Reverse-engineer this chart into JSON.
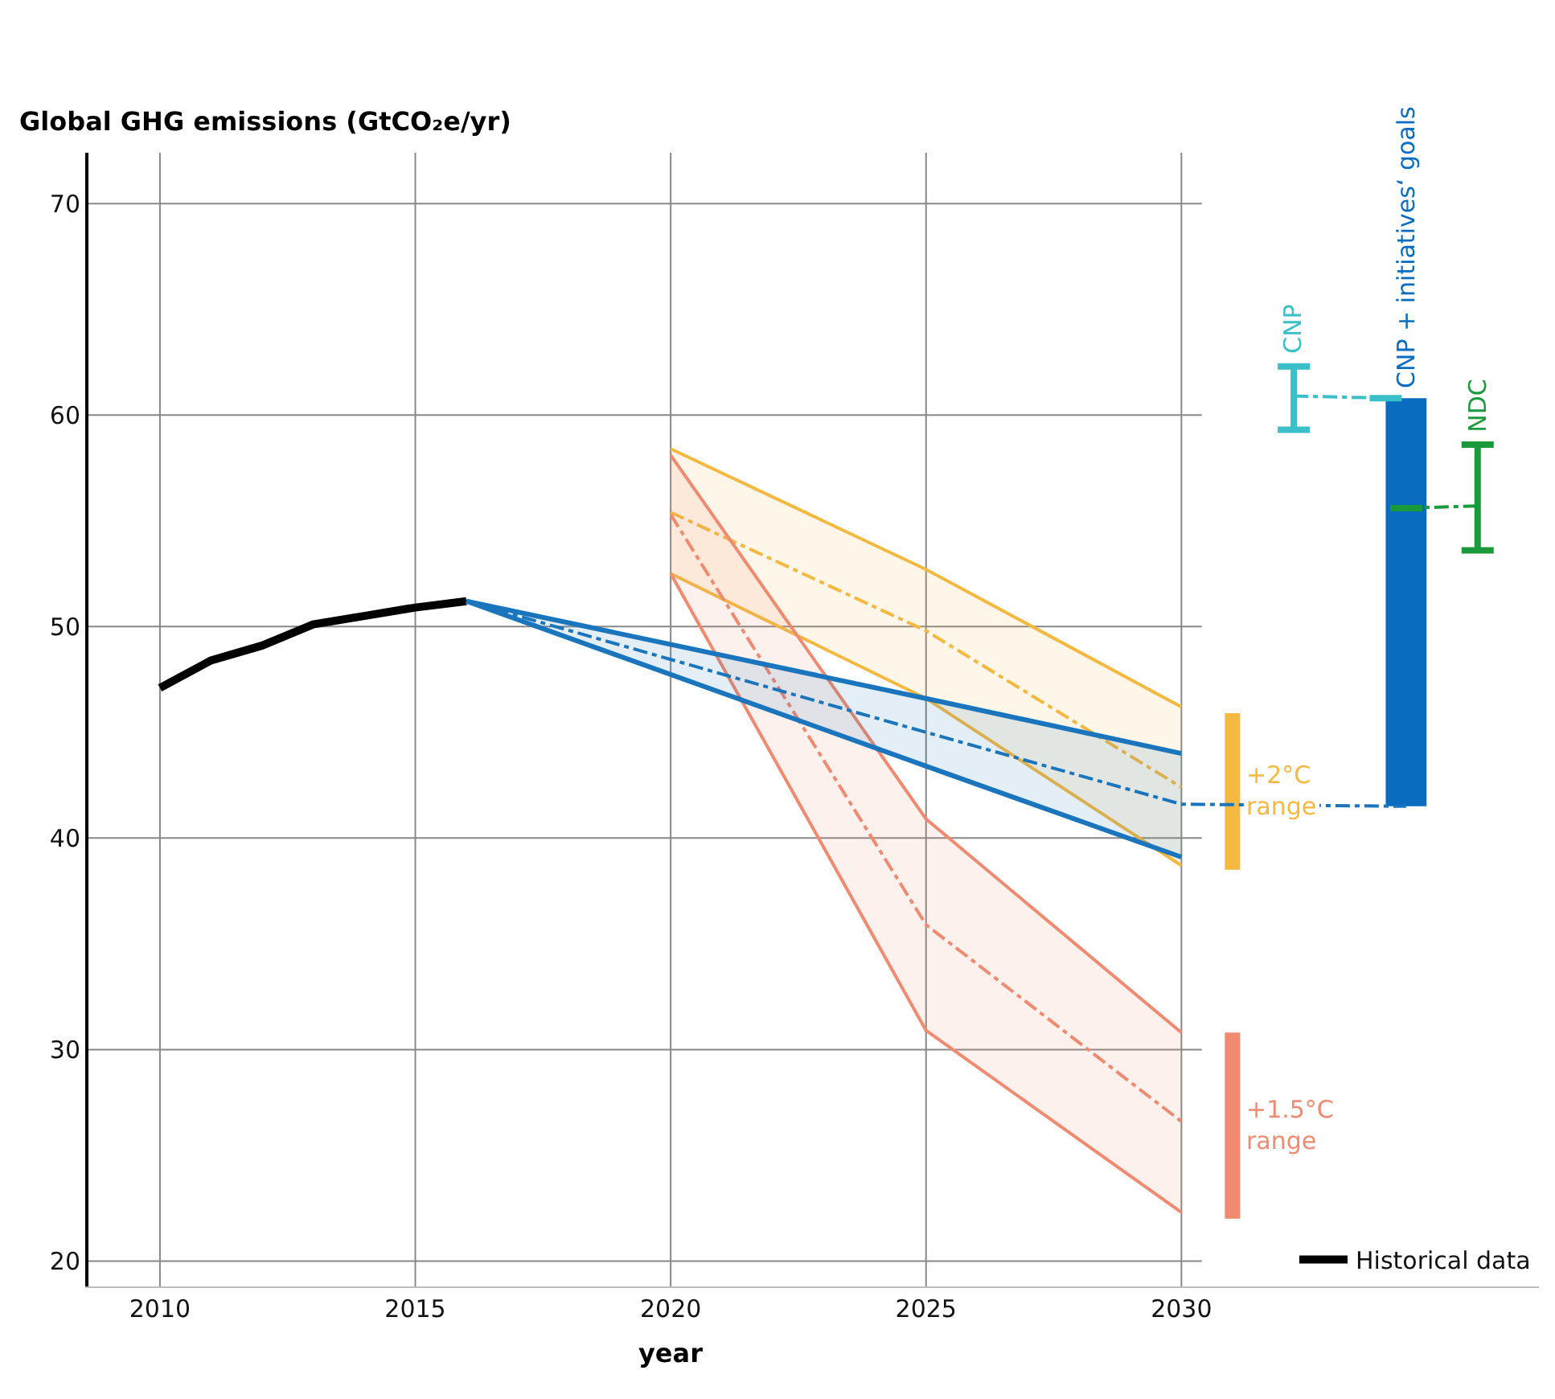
{
  "chart_data": {
    "type": "line",
    "ylabel": "Global GHG emissions (GtCO₂e/yr)",
    "xlabel": "year",
    "xlim": [
      2008.6,
      2037
    ],
    "ylim": [
      18.8,
      72.4
    ],
    "xticks": [
      2010,
      2015,
      2020,
      2025,
      2030
    ],
    "yticks": [
      20,
      30,
      40,
      50,
      60,
      70
    ],
    "grid": true,
    "legend": "bottom right",
    "series": [
      {
        "name": "Historical data",
        "color": "#000000",
        "x": [
          2010,
          2011,
          2012,
          2013,
          2014,
          2015,
          2016
        ],
        "values": [
          47.1,
          48.4,
          49.1,
          50.1,
          50.5,
          50.9,
          51.2
        ]
      },
      {
        "color": "#f5b942",
        "x": [
          2020,
          2025,
          2030
        ],
        "values": [
          55.4,
          49.8,
          42.4
        ],
        "lower": [
          52.5,
          46.6,
          38.7
        ],
        "upper": [
          58.4,
          52.7,
          46.2
        ],
        "line_style": "dashdot"
      },
      {
        "color": "#f5b942",
        "x": [
          2020,
          2025,
          2030
        ],
        "values": [
          58.4,
          52.7,
          46.2
        ]
      },
      {
        "color": "#f5b942",
        "x": [
          2020,
          2025,
          2030
        ],
        "values": [
          52.5,
          46.6,
          38.7
        ]
      },
      {
        "color": "#f08a70",
        "x": [
          2020,
          2025,
          2030
        ],
        "values": [
          55.3,
          35.9,
          26.6
        ],
        "lower": [
          52.5,
          30.9,
          22.3
        ],
        "upper": [
          58.1,
          40.9,
          30.8
        ],
        "line_style": "dashdot"
      },
      {
        "color": "#f08a70",
        "x": [
          2020,
          2025,
          2030
        ],
        "values": [
          58.1,
          40.9,
          30.8
        ]
      },
      {
        "color": "#f08a70",
        "x": [
          2020,
          2025,
          2030
        ],
        "values": [
          52.5,
          30.9,
          22.3
        ]
      },
      {
        "color": "#1a75bc",
        "x": [
          2016,
          2025,
          2030,
          2034.4
        ],
        "values": [
          51.2,
          45.0,
          41.6,
          41.5
        ],
        "lower": [
          51.2,
          43.4,
          39.1,
          null
        ],
        "upper": [
          51.2,
          46.6,
          44.0,
          null
        ],
        "line_style": "dashdot"
      },
      {
        "color": "#1a75bc",
        "x": [
          2016,
          2025,
          2030
        ],
        "values": [
          51.2,
          46.6,
          44.0
        ]
      },
      {
        "color": "#1a75bc",
        "x": [
          2016,
          2025,
          2030
        ],
        "values": [
          51.2,
          43.4,
          39.1
        ]
      },
      {
        "name": "+2°C\nrange",
        "type": "bar",
        "color": "#f5b942",
        "x": [
          2031
        ],
        "base": [
          38.5
        ],
        "values": [
          7.4
        ]
      },
      {
        "name": "+1.5°C\nrange",
        "type": "bar",
        "color": "#f08a70",
        "x": [
          2031
        ],
        "base": [
          22.0
        ],
        "values": [
          8.8
        ]
      },
      {
        "name": "CNP + initiatives‘ goals",
        "type": "bar",
        "color": "#0a6cbf",
        "x": [
          2034.4
        ],
        "base": [
          41.5
        ],
        "values": [
          19.3
        ]
      },
      {
        "name": "CNP",
        "color": "#3bbfc9",
        "x": [
          2032.2,
          2034.0
        ],
        "values": [
          60.9,
          60.8
        ],
        "errors": [
          [
            59.3,
            62.3
          ],
          null
        ],
        "line_style": "dashdot"
      },
      {
        "name": "NDC",
        "color": "#1a9a3a",
        "x": [
          2035.8,
          2034.4
        ],
        "values": [
          55.7,
          55.6
        ],
        "errors": [
          [
            53.6,
            58.6
          ],
          null
        ],
        "line_style": "dashdot"
      }
    ]
  }
}
